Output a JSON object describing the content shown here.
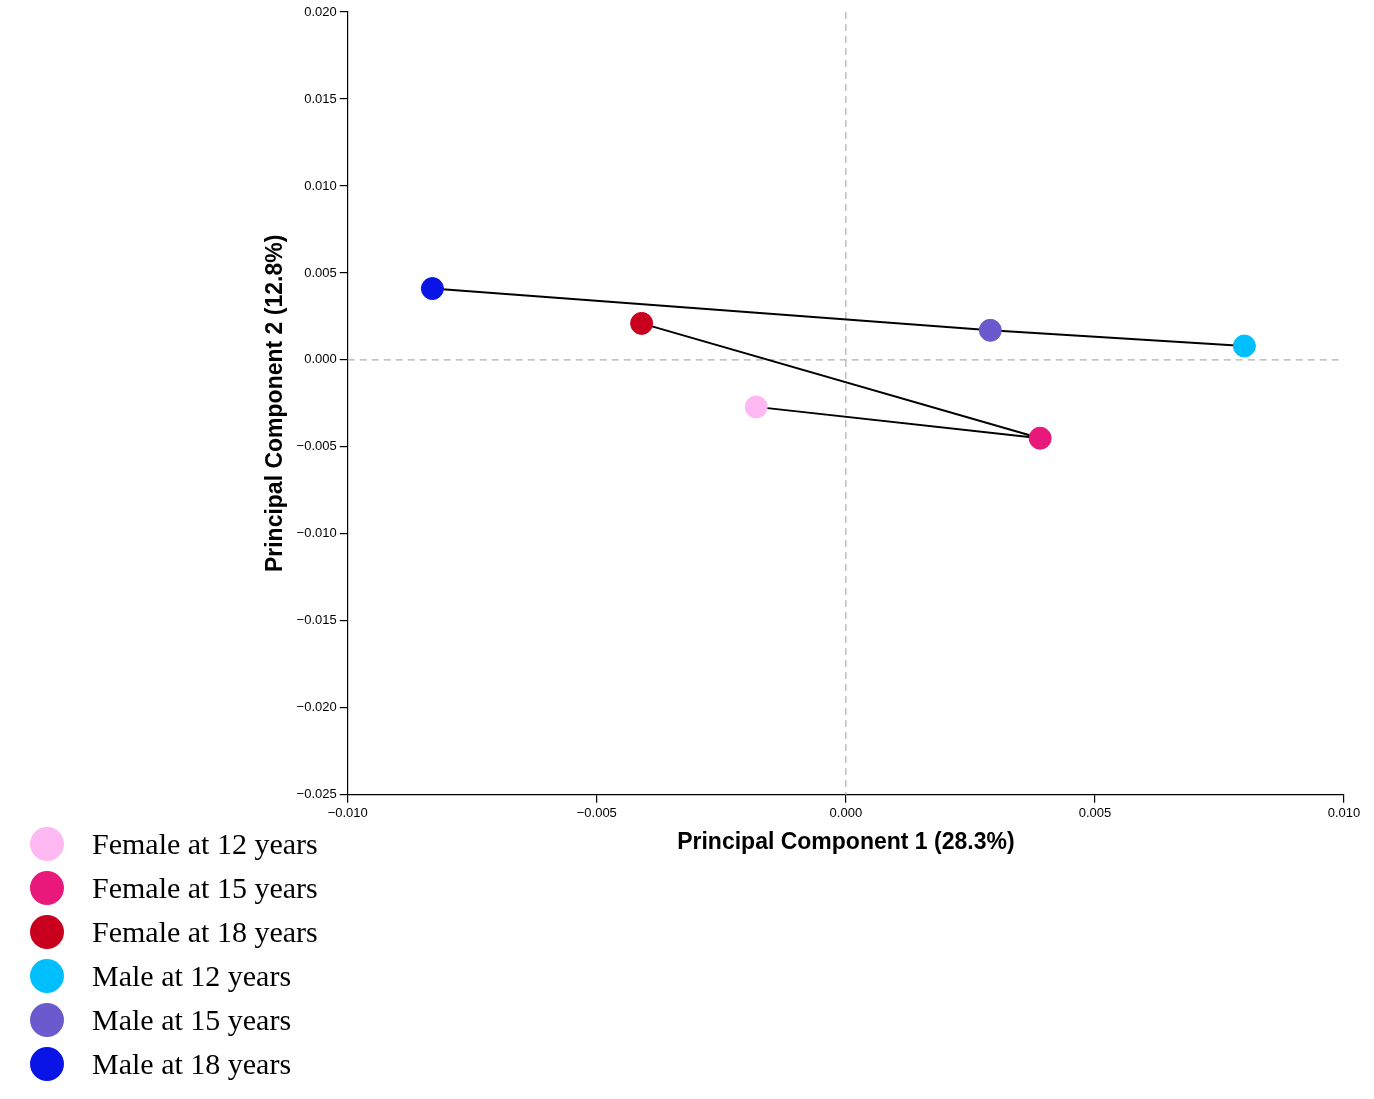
{
  "chart_data": {
    "type": "scatter",
    "x_label": "Principal Component 1 (28.3%)",
    "y_label": "Principal Component 2 (12.8%)",
    "xlim": [
      -0.01,
      0.01
    ],
    "xticks": [
      {
        "value": -0.01,
        "label": "−0.010"
      },
      {
        "value": -0.005,
        "label": "−0.005"
      },
      {
        "value": 0,
        "label": "0.000"
      },
      {
        "value": 0.005,
        "label": "0.005"
      },
      {
        "value": 0.01,
        "label": "0.010"
      }
    ],
    "ylim": [
      -0.025,
      0.02
    ],
    "yticks": [
      {
        "value": -0.025,
        "label": "−0.025"
      },
      {
        "value": -0.02,
        "label": "−0.020"
      },
      {
        "value": -0.015,
        "label": "−0.015"
      },
      {
        "value": -0.01,
        "label": "−0.010"
      },
      {
        "value": -0.005,
        "label": "−0.005"
      },
      {
        "value": 0,
        "label": "0.000"
      },
      {
        "value": 0.005,
        "label": "0.005"
      },
      {
        "value": 0.01,
        "label": "0.010"
      },
      {
        "value": 0.015,
        "label": "0.015"
      },
      {
        "value": 0.02,
        "label": "0.020"
      }
    ],
    "grid": false,
    "legend": "bottom-left",
    "marker": "circle",
    "series": [
      {
        "name": "Female at 12 years",
        "color": "#ffb8f2",
        "values": [
          {
            "x": -0.0018,
            "y": -0.0027
          }
        ]
      },
      {
        "name": "Female at 15 years",
        "color": "#e8197a",
        "values": [
          {
            "x": 0.0039,
            "y": -0.0045
          }
        ]
      },
      {
        "name": "Female at 18 years",
        "color": "#c8001e",
        "values": [
          {
            "x": -0.0041,
            "y": 0.0021
          }
        ]
      },
      {
        "name": "Male at 12 years",
        "color": "#00bfff",
        "values": [
          {
            "x": 0.008,
            "y": 0.0008
          }
        ]
      },
      {
        "name": "Male at 15 years",
        "color": "#6a5acd",
        "values": [
          {
            "x": 0.0029,
            "y": 0.0017
          }
        ]
      },
      {
        "name": "Male at 18 years",
        "color": "#0a14e6",
        "values": [
          {
            "x": -0.0083,
            "y": 0.0041
          }
        ]
      }
    ],
    "trajectories": [
      {
        "color": "#000000",
        "line_style": "solid",
        "series": [
          "Female at 12 years",
          "Female at 15 years",
          "Female at 18 years"
        ]
      },
      {
        "color": "#000000",
        "line_style": "solid",
        "series": [
          "Male at 12 years",
          "Male at 15 years",
          "Male at 18 years"
        ]
      }
    ]
  }
}
